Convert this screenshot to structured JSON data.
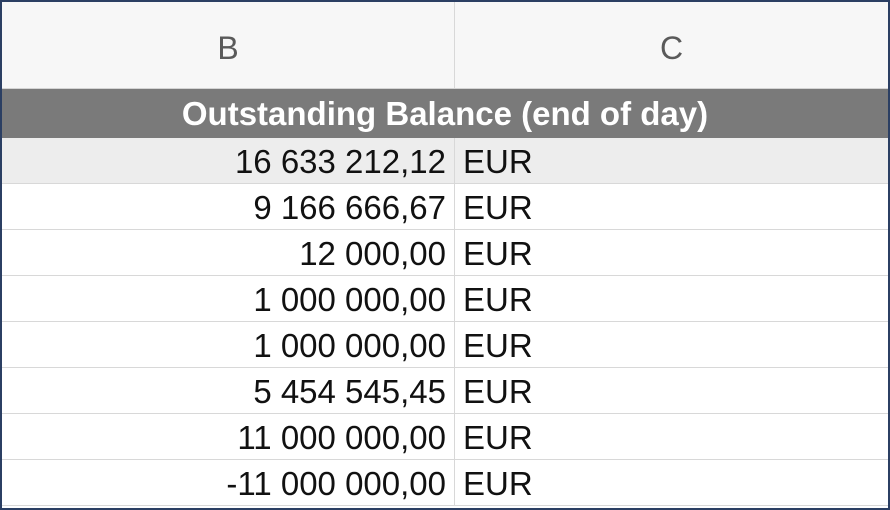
{
  "columns": {
    "b": "B",
    "c": "C"
  },
  "title": "Outstanding Balance (end of day)",
  "rows": [
    {
      "amount": "16 633 212,12",
      "currency": "EUR"
    },
    {
      "amount": "9 166 666,67",
      "currency": "EUR"
    },
    {
      "amount": "12 000,00",
      "currency": "EUR"
    },
    {
      "amount": "1 000 000,00",
      "currency": "EUR"
    },
    {
      "amount": "1 000 000,00",
      "currency": "EUR"
    },
    {
      "amount": "5 454 545,45",
      "currency": "EUR"
    },
    {
      "amount": "11 000 000,00",
      "currency": "EUR"
    },
    {
      "amount": "-11 000 000,00",
      "currency": "EUR"
    }
  ]
}
